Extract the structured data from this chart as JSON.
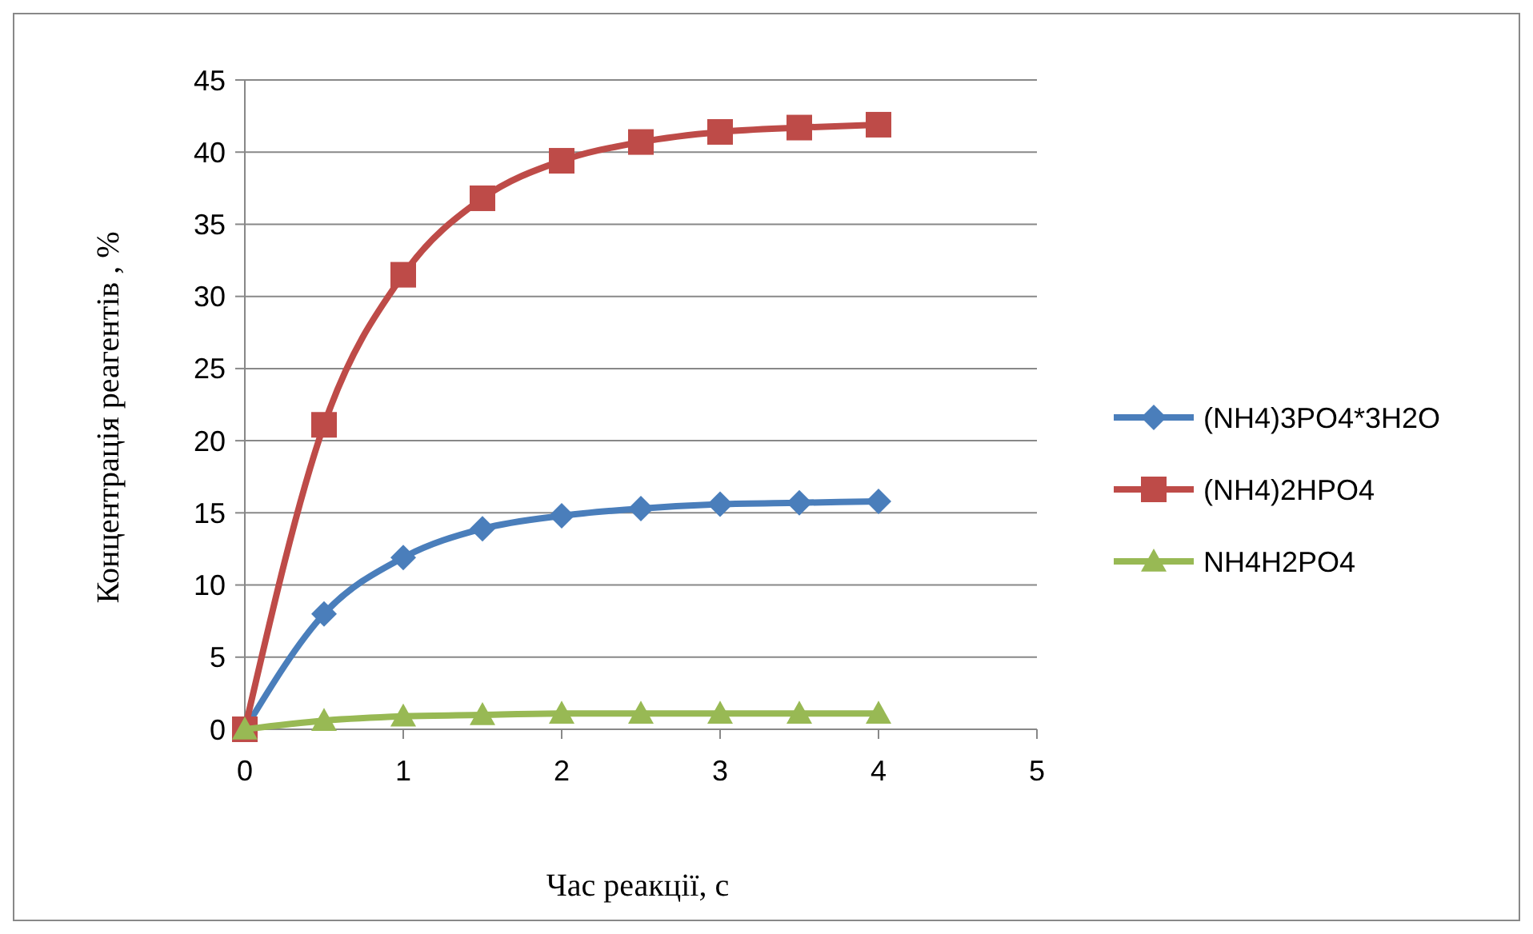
{
  "chart_data": {
    "type": "line",
    "xlabel": "Час реакції,  с",
    "ylabel": "Концентрація реагентів , %",
    "x": [
      0,
      0.5,
      1,
      1.5,
      2,
      2.5,
      3,
      3.5,
      4
    ],
    "xlim": [
      0,
      5
    ],
    "xticks": [
      0,
      1,
      2,
      3,
      4,
      5
    ],
    "ylim": [
      0,
      45
    ],
    "yticks": [
      0,
      5,
      10,
      15,
      20,
      25,
      30,
      35,
      40,
      45
    ],
    "grid": "y",
    "legend": "right",
    "line_style": "solid",
    "series": [
      {
        "name": "(NH4)3PO4*3H2O",
        "color": "#4a7ebb",
        "marker": "diamond",
        "values": [
          0,
          8,
          11.9,
          13.9,
          14.8,
          15.3,
          15.6,
          15.7,
          15.8
        ]
      },
      {
        "name": "(NH4)2HPO4",
        "color": "#be4b48",
        "marker": "square",
        "values": [
          0,
          21.1,
          31.5,
          36.8,
          39.4,
          40.7,
          41.4,
          41.7,
          41.9
        ]
      },
      {
        "name": "NH4H2PO4",
        "color": "#98b954",
        "marker": "triangle",
        "values": [
          0,
          0.6,
          0.9,
          1.0,
          1.1,
          1.1,
          1.1,
          1.1,
          1.1
        ]
      }
    ]
  }
}
